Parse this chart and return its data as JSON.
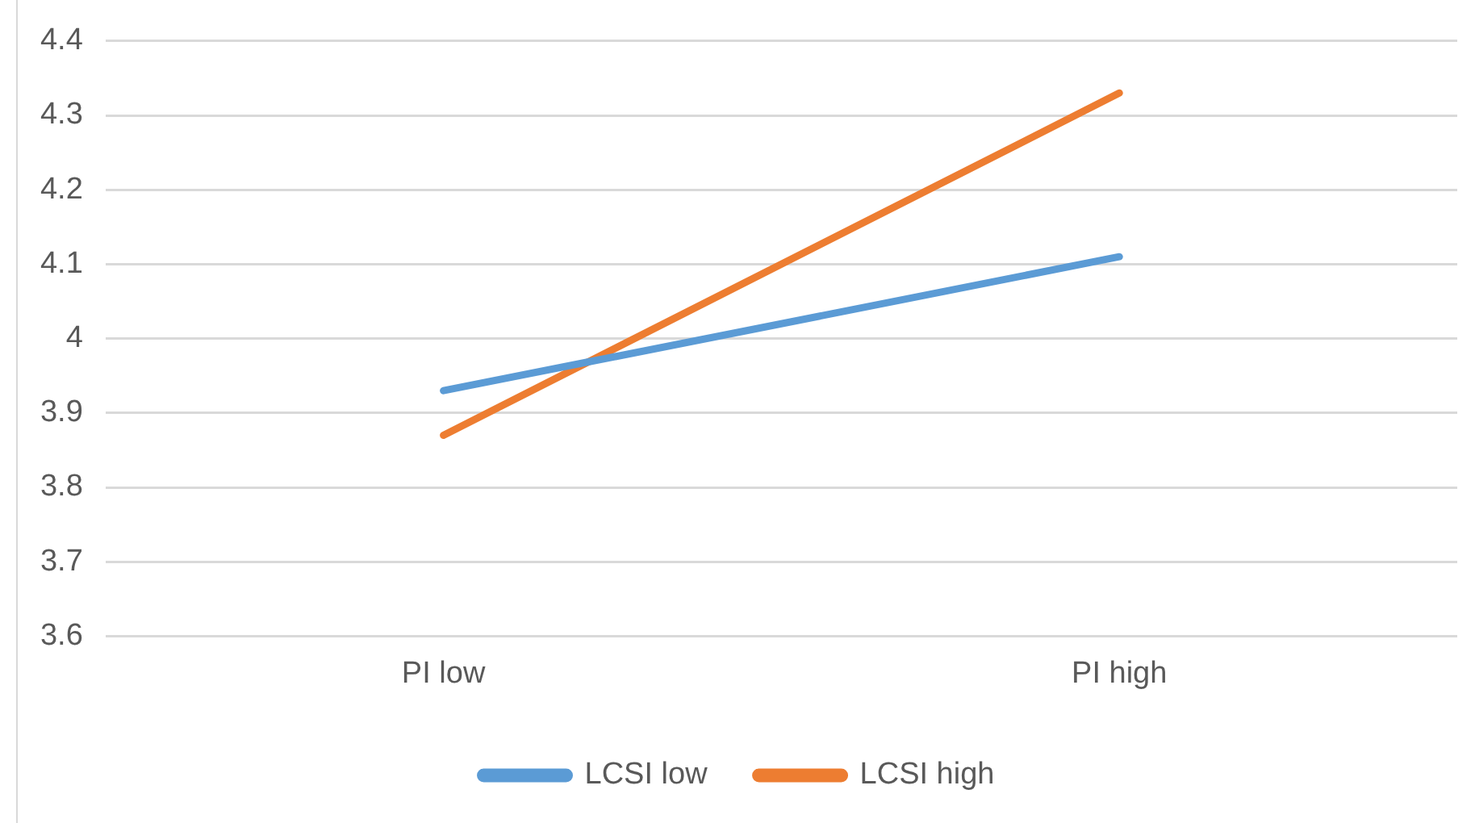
{
  "chart_data": {
    "type": "line",
    "categories": [
      "PI low",
      "PI high"
    ],
    "series": [
      {
        "name": "LCSI low",
        "color": "#5b9bd5",
        "values": [
          3.93,
          4.11
        ]
      },
      {
        "name": "LCSI high",
        "color": "#ed7d31",
        "values": [
          3.87,
          4.33
        ]
      }
    ],
    "ylim": [
      3.6,
      4.4
    ],
    "yticks": [
      3.6,
      3.7,
      3.8,
      3.9,
      4,
      4.1,
      4.2,
      4.3,
      4.4
    ],
    "grid": "y",
    "legend": "bottom",
    "marker": "none",
    "line_style": "solid"
  }
}
